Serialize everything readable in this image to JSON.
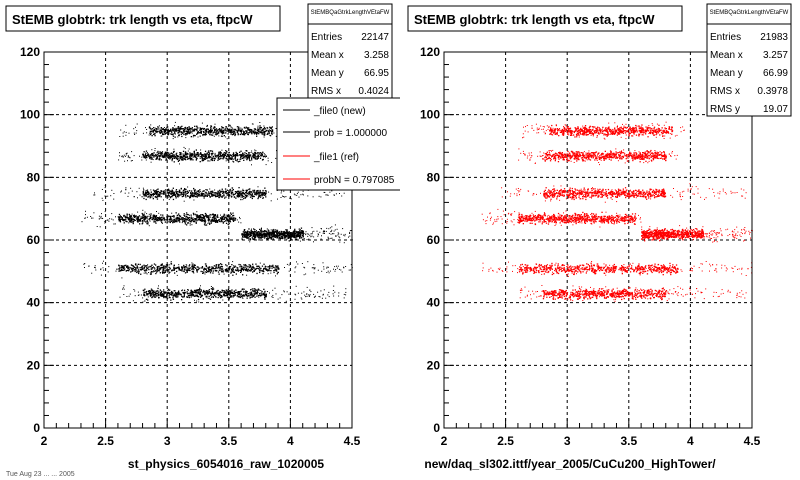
{
  "colors": {
    "reference": "#000000",
    "new": "#ff0000",
    "legend_ref": "#000000",
    "legend_new": "#ff0000"
  },
  "footer_left": "Tue Aug 23 ... ... 2005",
  "left": {
    "title": "StEMB globtrk: trk length vs eta, ftpcW",
    "stats": {
      "name": "StEMBQaGtrkLengthVEtaFW",
      "rows": [
        {
          "label": "Entries",
          "value": "22147"
        },
        {
          "label": "Mean x",
          "value": "3.258"
        },
        {
          "label": "Mean y",
          "value": "66.95"
        },
        {
          "label": "RMS x",
          "value": "0.4024"
        }
      ]
    },
    "legend": [
      {
        "label": "_file0 (new)",
        "color": "#000000"
      },
      {
        "label": "prob = 1.000000",
        "color": "#000000"
      },
      {
        "label": "_file1 (ref)",
        "color": "#ff0000"
      },
      {
        "label": "probN = 0.797085",
        "color": "#ff0000"
      }
    ],
    "xlabel": "st_physics_6054016_raw_1020005",
    "marker_color": "#000000"
  },
  "right": {
    "title": "StEMB globtrk: trk length vs eta, ftpcW",
    "stats": {
      "name": "StEMBQaGtrkLengthVEtaFW",
      "rows": [
        {
          "label": "Entries",
          "value": "21983"
        },
        {
          "label": "Mean x",
          "value": "3.257"
        },
        {
          "label": "Mean y",
          "value": "66.99"
        },
        {
          "label": "RMS x",
          "value": "0.3978"
        },
        {
          "label": "RMS y",
          "value": "19.07"
        }
      ]
    },
    "xlabel": "new/daq_sl302.ittf/year_2005/CuCu200_HighTower/",
    "marker_color": "#ff0000"
  },
  "chart_data": [
    {
      "type": "scatter",
      "title": "StEMB globtrk: trk length vs eta, ftpcW",
      "xlabel": "st_physics_6054016_raw_1020005",
      "ylabel": "",
      "xlim": [
        2,
        4.5
      ],
      "ylim": [
        0,
        120
      ],
      "xticks": [
        2,
        2.5,
        3,
        3.5,
        4,
        4.5
      ],
      "yticks": [
        0,
        20,
        40,
        60,
        80,
        100,
        120
      ],
      "grid": true,
      "color": "#000000",
      "bands": [
        {
          "y": 95,
          "x": [
            2.6,
            3.95
          ],
          "dense": [
            2.85,
            3.85
          ]
        },
        {
          "y": 87,
          "x": [
            2.6,
            3.9
          ],
          "dense": [
            2.8,
            3.8
          ]
        },
        {
          "y": 75,
          "x": [
            2.4,
            4.45
          ],
          "dense": [
            2.8,
            3.8
          ]
        },
        {
          "y": 67,
          "x": [
            2.3,
            3.6
          ],
          "dense": [
            2.6,
            3.55
          ]
        },
        {
          "y": 62,
          "x": [
            3.6,
            4.5
          ],
          "dense": [
            3.6,
            4.1
          ]
        },
        {
          "y": 51,
          "x": [
            2.3,
            4.5
          ],
          "dense": [
            2.6,
            3.9
          ]
        },
        {
          "y": 43,
          "x": [
            2.6,
            4.45
          ],
          "dense": [
            2.8,
            3.8
          ]
        }
      ],
      "stats": {
        "entries": 22147,
        "mean_x": 3.258,
        "mean_y": 66.95,
        "rms_x": 0.4024
      }
    },
    {
      "type": "scatter",
      "title": "StEMB globtrk: trk length vs eta, ftpcW",
      "xlabel": "new/daq_sl302.ittf/year_2005/CuCu200_HighTower/",
      "ylabel": "",
      "xlim": [
        2,
        4.5
      ],
      "ylim": [
        0,
        120
      ],
      "xticks": [
        2,
        2.5,
        3,
        3.5,
        4,
        4.5
      ],
      "yticks": [
        0,
        20,
        40,
        60,
        80,
        100,
        120
      ],
      "grid": true,
      "color": "#ff0000",
      "bands": [
        {
          "y": 95,
          "x": [
            2.6,
            3.95
          ],
          "dense": [
            2.85,
            3.85
          ]
        },
        {
          "y": 87,
          "x": [
            2.6,
            3.9
          ],
          "dense": [
            2.8,
            3.8
          ]
        },
        {
          "y": 75,
          "x": [
            2.4,
            4.45
          ],
          "dense": [
            2.8,
            3.8
          ]
        },
        {
          "y": 67,
          "x": [
            2.3,
            3.6
          ],
          "dense": [
            2.6,
            3.55
          ]
        },
        {
          "y": 62,
          "x": [
            3.6,
            4.5
          ],
          "dense": [
            3.6,
            4.1
          ]
        },
        {
          "y": 51,
          "x": [
            2.3,
            4.5
          ],
          "dense": [
            2.6,
            3.9
          ]
        },
        {
          "y": 43,
          "x": [
            2.6,
            4.45
          ],
          "dense": [
            2.8,
            3.8
          ]
        }
      ],
      "stats": {
        "entries": 21983,
        "mean_x": 3.257,
        "mean_y": 66.99,
        "rms_x": 0.3978,
        "rms_y": 19.07
      }
    }
  ]
}
